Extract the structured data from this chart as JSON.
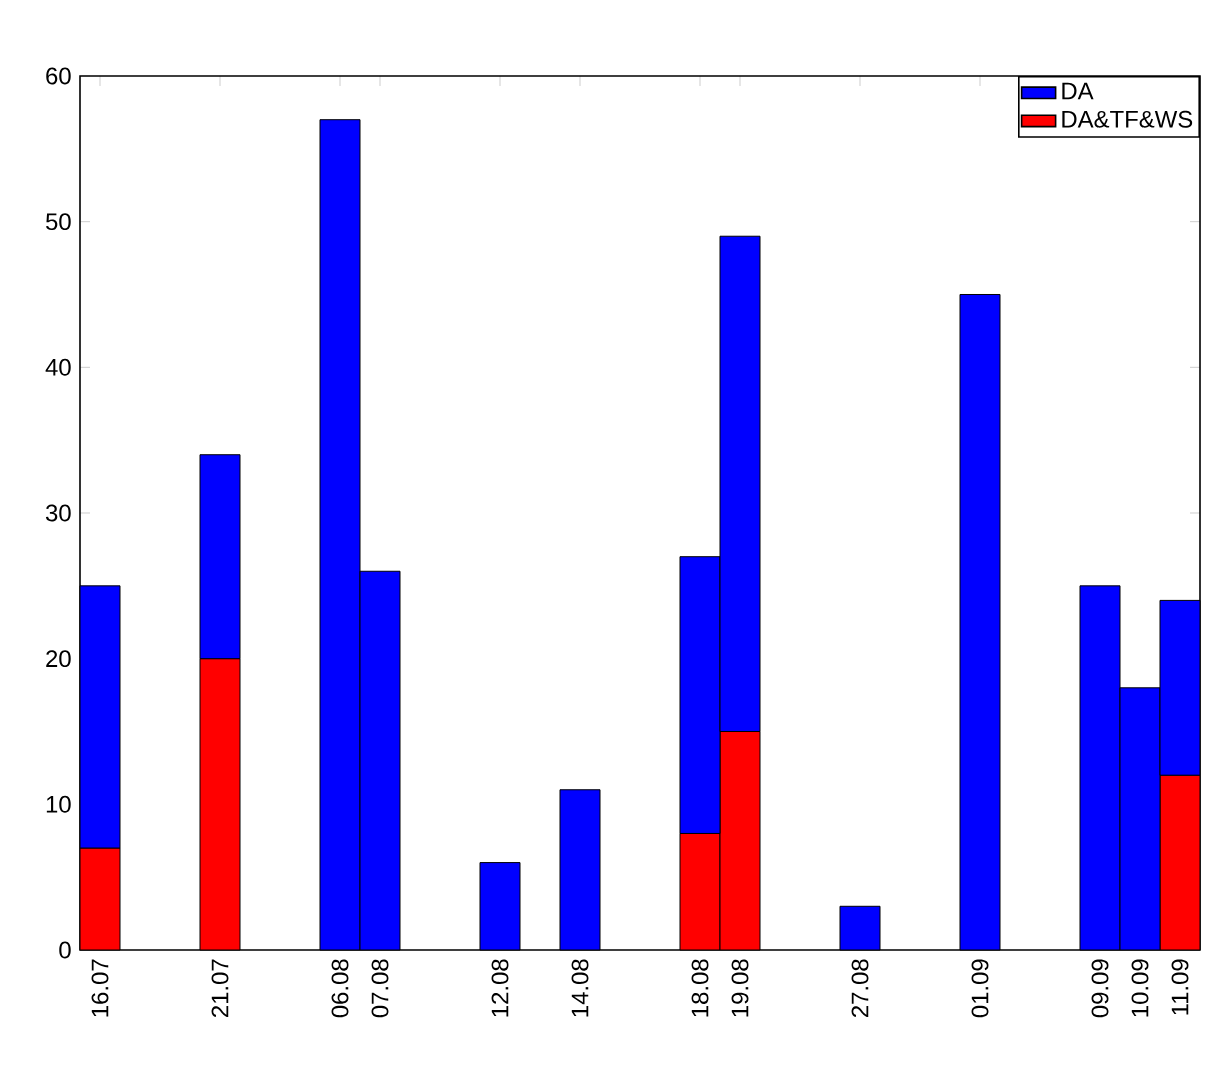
{
  "chart_data": {
    "type": "bar",
    "stacked": true,
    "categories": [
      "16.07",
      null,
      null,
      "21.07",
      null,
      null,
      "06.08",
      "07.08",
      null,
      null,
      "12.08",
      null,
      "14.08",
      null,
      null,
      "18.08",
      "19.08",
      null,
      null,
      "27.08",
      null,
      null,
      "01.09",
      null,
      null,
      "09.09",
      "10.09",
      "11.09"
    ],
    "series": [
      {
        "name": "DA&TF&WS",
        "color": "#ff0000",
        "values": [
          7,
          null,
          null,
          20,
          null,
          null,
          null,
          null,
          null,
          null,
          null,
          null,
          null,
          null,
          null,
          8,
          15,
          null,
          null,
          null,
          null,
          null,
          null,
          null,
          null,
          null,
          null,
          12
        ]
      },
      {
        "name": "DA",
        "color": "#0000ff",
        "values": [
          18,
          null,
          null,
          14,
          null,
          null,
          57,
          26,
          null,
          null,
          6,
          null,
          11,
          null,
          null,
          19,
          34,
          null,
          null,
          3,
          null,
          null,
          45,
          null,
          null,
          25,
          18,
          12
        ]
      }
    ],
    "ylim": [
      0,
      60
    ],
    "yticks": [
      0,
      10,
      20,
      30,
      40,
      50,
      60
    ],
    "legend": "top right"
  }
}
